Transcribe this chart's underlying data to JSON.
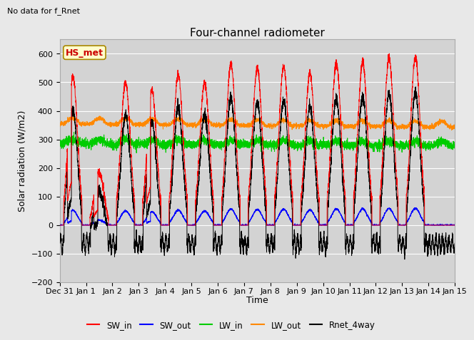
{
  "title": "Four-channel radiometer",
  "suptitle": "No data for f_Rnet",
  "ylabel": "Solar radiation (W/m2)",
  "xlabel": "Time",
  "ylim": [
    -200,
    650
  ],
  "yticks": [
    -200,
    -100,
    0,
    100,
    200,
    300,
    400,
    500,
    600
  ],
  "xtick_labels": [
    "Dec 31",
    "Jan 1",
    "Jan 2",
    "Jan 3",
    "Jan 4",
    "Jan 5",
    "Jan 6",
    "Jan 7",
    "Jan 8",
    "Jan 9",
    "Jan 10",
    "Jan 11",
    "Jan 12",
    "Jan 13",
    "Jan 14",
    "Jan 15"
  ],
  "station_label": "HS_met",
  "station_label_color": "#cc0000",
  "legend_entries": [
    "SW_in",
    "SW_out",
    "LW_in",
    "LW_out",
    "Rnet_4way"
  ],
  "legend_colors": [
    "#ff0000",
    "#0000ff",
    "#00cc00",
    "#ff8800",
    "#000000"
  ],
  "bg_color": "#e8e8e8",
  "plot_bg_color": "#d3d3d3",
  "n_days": 15,
  "seed": 42,
  "sw_in_peaks": [
    520,
    185,
    500,
    470,
    525,
    500,
    565,
    550,
    555,
    530,
    570,
    570,
    585,
    590
  ],
  "lw_out_base": 355,
  "lw_in_base": 285
}
